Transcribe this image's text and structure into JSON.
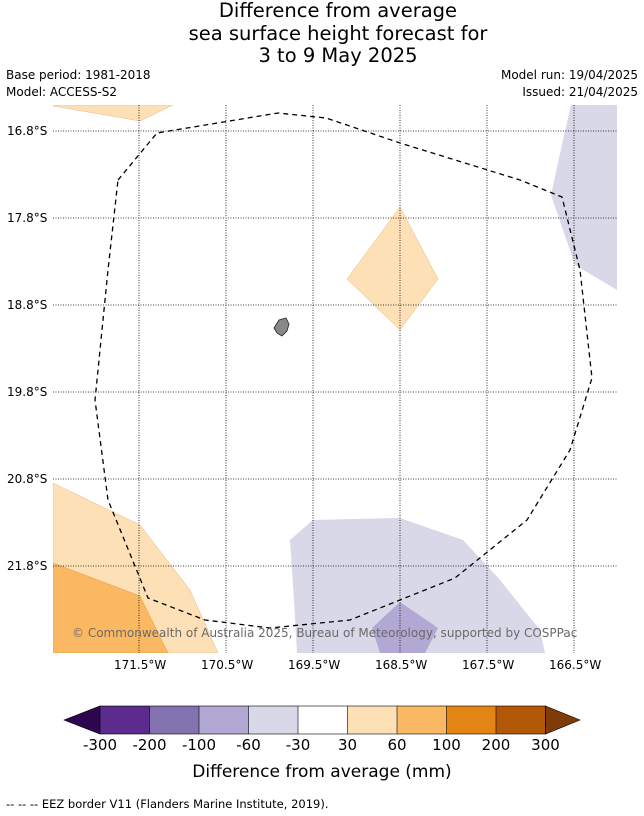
{
  "title": {
    "line1": "Difference from average",
    "line2": "sea surface height forecast for",
    "line3": "3 to 9 May 2025"
  },
  "meta": {
    "base_period": "Base period: 1981-2018",
    "model": "Model: ACCESS-S2",
    "model_run": "Model run: 19/04/2025",
    "issued": "Issued: 21/04/2025"
  },
  "map": {
    "lat_labels": [
      "16.8°S",
      "17.8°S",
      "18.8°S",
      "19.8°S",
      "20.8°S",
      "21.8°S"
    ],
    "lon_labels": [
      "171.5°W",
      "170.5°W",
      "169.5°W",
      "168.5°W",
      "167.5°W",
      "166.5°W"
    ],
    "credit": "© Commonwealth of Australia 2025, Bureau of Meteorology, supported by COSPPac",
    "colors": {
      "light_orange": "#fde0b6",
      "orange": "#fbb862",
      "light_purple": "#d8d8e8",
      "mid_purple": "#b1a8d3",
      "land": "#888888",
      "grid": "#000000"
    }
  },
  "colorbar": {
    "ticks": [
      "-300",
      "-200",
      "-100",
      "-60",
      "-30",
      "30",
      "60",
      "100",
      "200",
      "300"
    ],
    "colors": [
      "#2d0650",
      "#5c2b8d",
      "#8273b0",
      "#b1a8d3",
      "#d8d8e8",
      "#ffffff",
      "#fde0b6",
      "#fbb862",
      "#e38514",
      "#b35806",
      "#7f3b08"
    ],
    "label": "Difference from average (mm)"
  },
  "footer": "--  --  -- EEZ border V11 (Flanders Marine Institute, 2019)."
}
